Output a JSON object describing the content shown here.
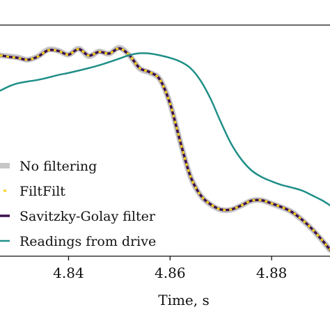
{
  "chart_data": {
    "type": "line",
    "xlabel": "Time, s",
    "ylabel": "",
    "xlim": [
      4.8265,
      4.8915
    ],
    "ylim": [
      0.0,
      1.0
    ],
    "xticks": [
      {
        "value": 4.84,
        "label": "4.84"
      },
      {
        "value": 4.86,
        "label": "4.86"
      },
      {
        "value": 4.88,
        "label": "4.88"
      }
    ],
    "grid": false,
    "legend_position": "bottom-left",
    "series": [
      {
        "name": "No filtering",
        "style": "thick-solid",
        "color": "#c6c6c6",
        "x": [
          4.8265,
          4.8285,
          4.83,
          4.832,
          4.834,
          4.836,
          4.838,
          4.84,
          4.842,
          4.844,
          4.846,
          4.848,
          4.85,
          4.852,
          4.854,
          4.856,
          4.858,
          4.86,
          4.862,
          4.864,
          4.866,
          4.868,
          4.87,
          4.872,
          4.874,
          4.876,
          4.878,
          4.88,
          4.882,
          4.884,
          4.886,
          4.888,
          4.89,
          4.8915
        ],
        "y": [
          0.869,
          0.864,
          0.86,
          0.85,
          0.865,
          0.894,
          0.889,
          0.872,
          0.898,
          0.865,
          0.886,
          0.876,
          0.902,
          0.868,
          0.812,
          0.794,
          0.765,
          0.66,
          0.495,
          0.345,
          0.263,
          0.223,
          0.201,
          0.201,
          0.219,
          0.24,
          0.242,
          0.227,
          0.211,
          0.191,
          0.157,
          0.116,
          0.067,
          0.027
        ]
      },
      {
        "name": "FiltFilt",
        "style": "dotted",
        "color": "#f5d21a",
        "x": [
          4.8265,
          4.8285,
          4.83,
          4.832,
          4.834,
          4.836,
          4.838,
          4.84,
          4.842,
          4.844,
          4.846,
          4.848,
          4.85,
          4.852,
          4.854,
          4.856,
          4.858,
          4.86,
          4.862,
          4.864,
          4.866,
          4.868,
          4.87,
          4.872,
          4.874,
          4.876,
          4.878,
          4.88,
          4.882,
          4.884,
          4.886,
          4.888,
          4.89,
          4.8915
        ],
        "y": [
          0.869,
          0.862,
          0.858,
          0.85,
          0.864,
          0.891,
          0.888,
          0.872,
          0.896,
          0.868,
          0.884,
          0.877,
          0.899,
          0.869,
          0.814,
          0.796,
          0.764,
          0.66,
          0.496,
          0.346,
          0.264,
          0.224,
          0.202,
          0.202,
          0.219,
          0.24,
          0.242,
          0.228,
          0.212,
          0.191,
          0.158,
          0.117,
          0.068,
          0.028
        ]
      },
      {
        "name": "Savitzky-Golay filter",
        "style": "solid",
        "color": "#3b0f4f",
        "x": [
          4.8265,
          4.8285,
          4.83,
          4.832,
          4.834,
          4.836,
          4.838,
          4.84,
          4.842,
          4.844,
          4.846,
          4.848,
          4.85,
          4.852,
          4.854,
          4.856,
          4.858,
          4.86,
          4.862,
          4.864,
          4.866,
          4.868,
          4.87,
          4.872,
          4.874,
          4.876,
          4.878,
          4.88,
          4.882,
          4.884,
          4.886,
          4.888,
          4.89,
          4.8915
        ],
        "y": [
          0.869,
          0.862,
          0.858,
          0.85,
          0.864,
          0.891,
          0.888,
          0.872,
          0.896,
          0.868,
          0.884,
          0.877,
          0.899,
          0.869,
          0.814,
          0.796,
          0.764,
          0.66,
          0.496,
          0.346,
          0.264,
          0.224,
          0.202,
          0.202,
          0.219,
          0.24,
          0.242,
          0.228,
          0.212,
          0.191,
          0.158,
          0.117,
          0.068,
          0.028
        ]
      },
      {
        "name": "Readings from drive",
        "style": "solid",
        "color": "#1f8f87",
        "x": [
          4.8265,
          4.8285,
          4.83,
          4.832,
          4.834,
          4.836,
          4.838,
          4.84,
          4.842,
          4.844,
          4.846,
          4.848,
          4.85,
          4.852,
          4.854,
          4.856,
          4.858,
          4.86,
          4.862,
          4.864,
          4.866,
          4.868,
          4.87,
          4.872,
          4.874,
          4.876,
          4.878,
          4.88,
          4.882,
          4.884,
          4.886,
          4.888,
          4.89,
          4.8915
        ],
        "y": [
          0.716,
          0.737,
          0.748,
          0.756,
          0.763,
          0.773,
          0.784,
          0.793,
          0.803,
          0.814,
          0.826,
          0.84,
          0.855,
          0.87,
          0.878,
          0.877,
          0.869,
          0.858,
          0.842,
          0.814,
          0.76,
          0.68,
          0.58,
          0.488,
          0.42,
          0.372,
          0.343,
          0.324,
          0.308,
          0.297,
          0.284,
          0.263,
          0.241,
          0.22
        ]
      }
    ]
  }
}
